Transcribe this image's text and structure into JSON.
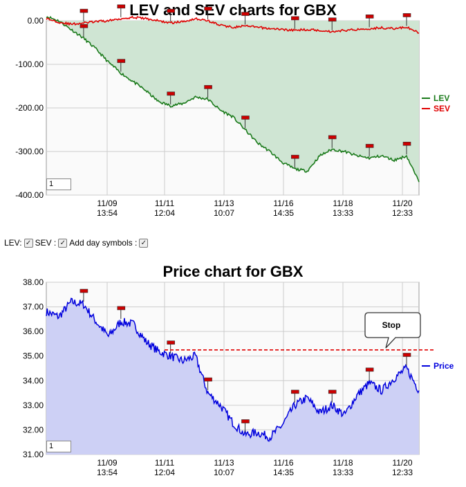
{
  "colors": {
    "lev": "#1a7a1a",
    "sev": "#e00000",
    "price": "#0000dd",
    "lev_fill": "#cfe5d3",
    "sev_fill": "#d8c0b4",
    "price_fill": "#cdd0f5",
    "stop": "#e00000",
    "flag": "#cc0000"
  },
  "controls": {
    "lev_label": "LEV:",
    "sev_label": "SEV :",
    "day_label": "Add day symbols :"
  },
  "chart_data": [
    {
      "type": "line",
      "title": "LEV and SEV charts for GBX",
      "xlabel": "",
      "ylabel": "",
      "ylim": [
        -400,
        0
      ],
      "ytick_labels": [
        "0.00",
        "-100.00",
        "-200.00",
        "-300.00",
        "-400.00"
      ],
      "xtick_labels": [
        [
          "11/09",
          "13:54"
        ],
        [
          "11/11",
          "12:04"
        ],
        [
          "11/13",
          "10:07"
        ],
        [
          "11/16",
          "14:35"
        ],
        [
          "11/18",
          "13:33"
        ],
        [
          "11/20",
          "12:33"
        ]
      ],
      "legend_position": "right",
      "grid": true,
      "box_value": "1",
      "series": [
        {
          "name": "LEV",
          "x": [
            0,
            1,
            2,
            3,
            4,
            5,
            6,
            7,
            8,
            9,
            10,
            11,
            12,
            13,
            14,
            15,
            16,
            17,
            18,
            19,
            20,
            21,
            22,
            23,
            24,
            25,
            26,
            27,
            28,
            29,
            30
          ],
          "values": [
            10,
            0,
            -20,
            -40,
            -65,
            -95,
            -120,
            -140,
            -160,
            -185,
            -195,
            -190,
            -175,
            -180,
            -205,
            -220,
            -250,
            -280,
            -300,
            -325,
            -340,
            -345,
            -310,
            -295,
            -300,
            -310,
            -315,
            -310,
            -320,
            -310,
            -370
          ]
        },
        {
          "name": "SEV",
          "x": [
            0,
            1,
            2,
            3,
            4,
            5,
            6,
            7,
            8,
            9,
            10,
            11,
            12,
            13,
            14,
            15,
            16,
            17,
            18,
            19,
            20,
            21,
            22,
            23,
            24,
            25,
            26,
            27,
            28,
            29,
            30
          ],
          "values": [
            5,
            -3,
            -8,
            -5,
            -2,
            0,
            5,
            8,
            5,
            0,
            -5,
            -2,
            5,
            0,
            -10,
            -15,
            -12,
            -15,
            -18,
            -20,
            -22,
            -20,
            -22,
            -25,
            -22,
            -20,
            -18,
            -16,
            -18,
            -15,
            -28
          ]
        }
      ]
    },
    {
      "type": "line",
      "title": "Price chart for GBX",
      "xlabel": "",
      "ylabel": "",
      "ylim": [
        31,
        38
      ],
      "ytick_labels": [
        "38.00",
        "37.00",
        "36.00",
        "35.00",
        "34.00",
        "33.00",
        "32.00",
        "31.00"
      ],
      "xtick_labels": [
        [
          "11/09",
          "13:54"
        ],
        [
          "11/11",
          "12:04"
        ],
        [
          "11/13",
          "10:07"
        ],
        [
          "11/16",
          "14:35"
        ],
        [
          "11/18",
          "13:33"
        ],
        [
          "11/20",
          "12:33"
        ]
      ],
      "legend_position": "right",
      "grid": true,
      "box_value": "1",
      "stop_label": "Stop",
      "stop_level": 35.25,
      "series": [
        {
          "name": "Price",
          "x": [
            0,
            1,
            2,
            3,
            4,
            5,
            6,
            7,
            8,
            9,
            10,
            11,
            12,
            13,
            14,
            15,
            16,
            17,
            18,
            19,
            20,
            21,
            22,
            23,
            24,
            25,
            26,
            27,
            28,
            29,
            30
          ],
          "values": [
            36.8,
            36.6,
            37.2,
            37.1,
            36.4,
            35.8,
            36.4,
            36.3,
            35.6,
            35.2,
            35.0,
            34.8,
            35.0,
            33.5,
            33.0,
            32.3,
            31.8,
            31.9,
            31.7,
            32.2,
            33.0,
            33.3,
            32.7,
            33.0,
            32.6,
            33.4,
            33.9,
            33.6,
            34.1,
            34.5,
            33.6
          ]
        }
      ]
    }
  ]
}
